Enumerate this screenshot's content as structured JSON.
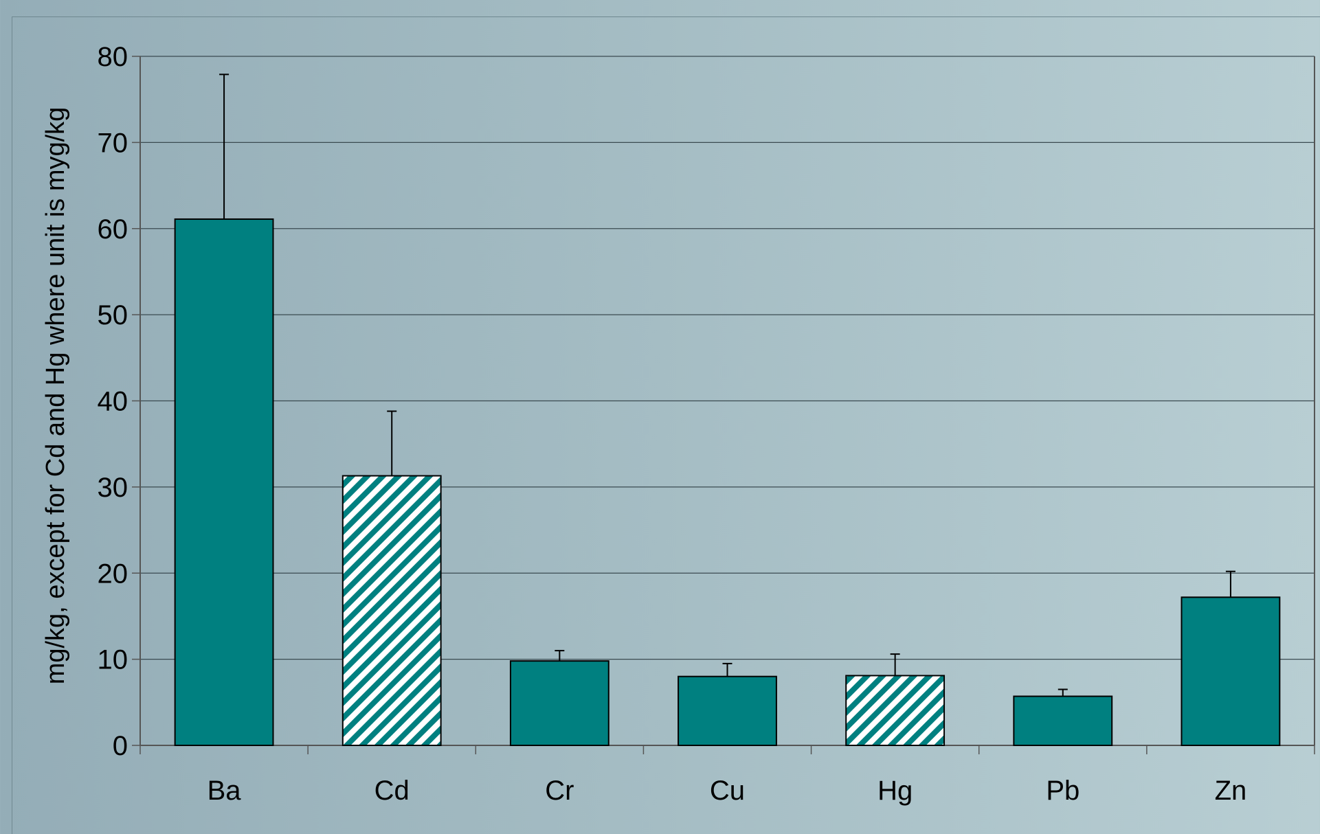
{
  "chart_data": {
    "type": "bar",
    "title": "",
    "xlabel": "",
    "ylabel": "mg/kg, except for Cd and Hg where unit is myg/kg",
    "categories": [
      "Ba",
      "Cd",
      "Cr",
      "Cu",
      "Hg",
      "Pb",
      "Zn"
    ],
    "values": [
      61.1,
      31.3,
      9.8,
      8.0,
      8.1,
      5.7,
      17.2
    ],
    "error_plus": [
      16.8,
      7.5,
      1.2,
      1.5,
      2.5,
      0.8,
      3.0
    ],
    "hatched": [
      false,
      true,
      false,
      false,
      true,
      false,
      false
    ],
    "ylim": [
      0,
      80
    ],
    "yticks": [
      0,
      10,
      20,
      30,
      40,
      50,
      60,
      70,
      80
    ],
    "grid": true,
    "legend": "none",
    "colors": {
      "bar_fill": "#008080",
      "hatch_background": "#ffffff",
      "bar_stroke": "#000000",
      "gridline": "#3a4a50",
      "axis": "#555555"
    }
  }
}
